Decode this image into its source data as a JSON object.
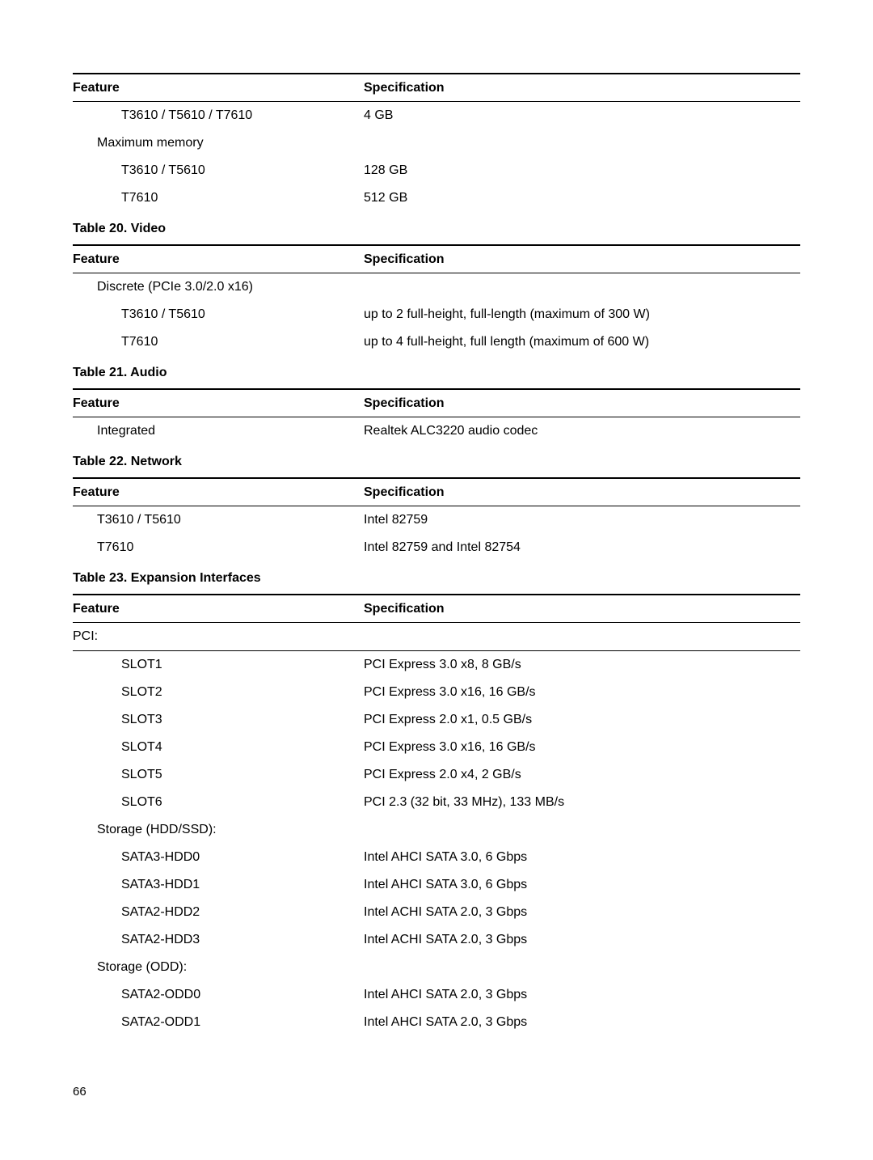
{
  "table19": {
    "h1": "Feature",
    "h2": "Specification",
    "r1f": "T3610 / T5610 / T7610",
    "r1s": "4 GB",
    "r2f": "Maximum memory",
    "r3f": "T3610 / T5610",
    "r3s": "128 GB",
    "r4f": "T7610",
    "r4s": "512 GB"
  },
  "table20": {
    "caption": "Table 20. Video",
    "h1": "Feature",
    "h2": "Specification",
    "r1f": "Discrete (PCIe 3.0/2.0 x16)",
    "r2f": "T3610 / T5610",
    "r2s": "up to 2 full-height, full-length (maximum of 300 W)",
    "r3f": "T7610",
    "r3s": "up to 4 full-height, full length (maximum of 600 W)"
  },
  "table21": {
    "caption": "Table 21. Audio",
    "h1": "Feature",
    "h2": "Specification",
    "r1f": "Integrated",
    "r1s": "Realtek ALC3220 audio codec"
  },
  "table22": {
    "caption": "Table 22. Network",
    "h1": "Feature",
    "h2": "Specification",
    "r1f": "T3610 / T5610",
    "r1s": "Intel 82759",
    "r2f": "T7610",
    "r2s": "Intel 82759 and Intel 82754"
  },
  "table23": {
    "caption": "Table 23. Expansion Interfaces",
    "h1": "Feature",
    "h2": "Specification",
    "r1f": "PCI:",
    "r2f": "SLOT1",
    "r2s": "PCI Express 3.0 x8, 8 GB/s",
    "r3f": "SLOT2",
    "r3s": "PCI Express 3.0 x16, 16 GB/s",
    "r4f": "SLOT3",
    "r4s": "PCI Express 2.0 x1, 0.5 GB/s",
    "r5f": "SLOT4",
    "r5s": "PCI Express 3.0 x16, 16 GB/s",
    "r6f": "SLOT5",
    "r6s": "PCI Express 2.0 x4, 2 GB/s",
    "r7f": "SLOT6",
    "r7s": "PCI 2.3 (32 bit, 33 MHz), 133 MB/s",
    "r8f": "Storage (HDD/SSD):",
    "r9f": "SATA3-HDD0",
    "r9s": "Intel AHCI SATA 3.0, 6 Gbps",
    "r10f": "SATA3-HDD1",
    "r10s": "Intel AHCI SATA 3.0, 6 Gbps",
    "r11f": "SATA2-HDD2",
    "r11s": "Intel ACHI SATA 2.0, 3 Gbps",
    "r12f": "SATA2-HDD3",
    "r12s": "Intel ACHI SATA 2.0, 3 Gbps",
    "r13f": "Storage (ODD):",
    "r14f": "SATA2-ODD0",
    "r14s": "Intel AHCI SATA 2.0, 3 Gbps",
    "r15f": "SATA2-ODD1",
    "r15s": "Intel AHCI SATA 2.0, 3 Gbps"
  },
  "pageNumber": "66"
}
